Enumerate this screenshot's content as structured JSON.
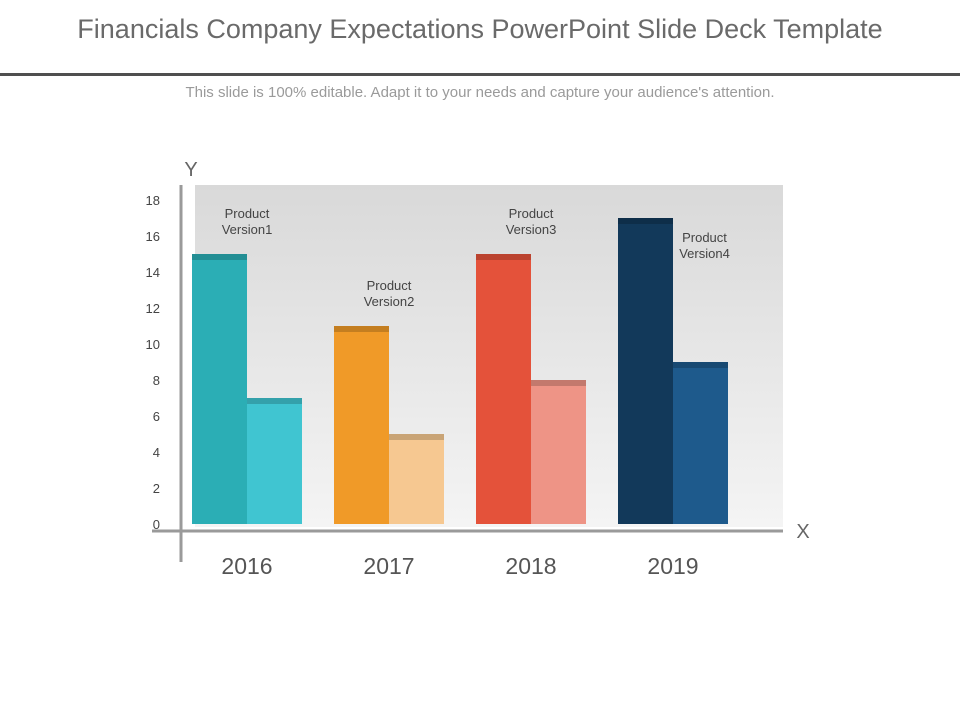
{
  "slide": {
    "title": "Financials Company Expectations PowerPoint Slide Deck Template",
    "subtitle": "This slide is 100% editable. Adapt it to your needs and capture your audience's attention."
  },
  "chart_data": {
    "type": "bar",
    "categories": [
      "2016",
      "2017",
      "2018",
      "2019"
    ],
    "series": [
      {
        "values": [
          15,
          11,
          15,
          17
        ]
      },
      {
        "values": [
          7,
          5,
          8,
          9
        ]
      }
    ],
    "bar_labels": [
      "Product Version1",
      "Product Version2",
      "Product Version3",
      "Product Version4"
    ],
    "bar_colors": [
      {
        "primary": "#2BAEB5",
        "secondary": "#40C5D1"
      },
      {
        "primary": "#F09A28",
        "secondary": "#F6C891"
      },
      {
        "primary": "#E4523A",
        "secondary": "#EE9486"
      },
      {
        "primary": "#12395A",
        "secondary": "#1E5A8C"
      }
    ],
    "xlabel": "X",
    "ylabel": "Y",
    "ylim": [
      0,
      18
    ],
    "yticks": [
      0,
      2,
      4,
      6,
      8,
      10,
      12,
      14,
      16,
      18
    ],
    "grid": false,
    "legend": "none"
  }
}
